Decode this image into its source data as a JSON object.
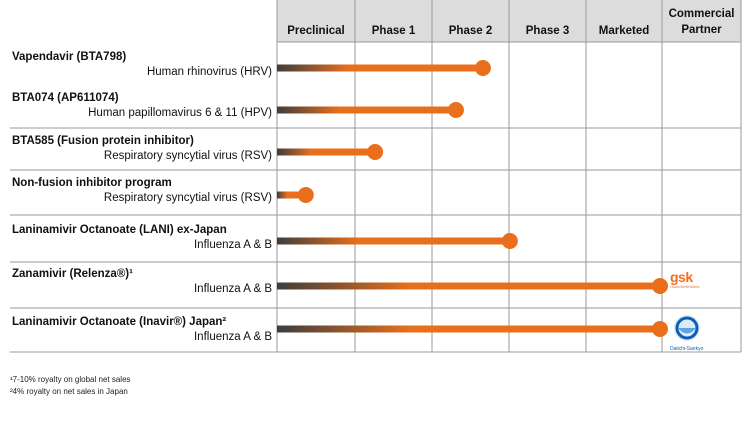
{
  "chart_data": {
    "type": "bar",
    "columns": [
      "Preclinical",
      "Phase 1",
      "Phase 2",
      "Phase 3",
      "Marketed"
    ],
    "partner_header": [
      "Commercial",
      "Partner"
    ],
    "rows": [
      {
        "name": "Vapendavir (BTA798)",
        "indication": "Human rhinovirus (HRV)",
        "progress": 2.7,
        "partner": ""
      },
      {
        "name": "BTA074 (AP611074)",
        "indication": "Human papillomavirus 6 & 11 (HPV)",
        "progress": 2.35,
        "partner": ""
      },
      {
        "name": "BTA585 (Fusion protein inhibitor)",
        "indication": "Respiratory syncytial virus (RSV)",
        "progress": 1.3,
        "partner": ""
      },
      {
        "name": "Non-fusion inhibitor program",
        "indication": "Respiratory syncytial virus (RSV)",
        "progress": 0.4,
        "partner": ""
      },
      {
        "name": "Laninamivir Octanoate (LANI) ex-Japan",
        "indication": "Influenza A & B",
        "progress": 3.05,
        "partner": ""
      },
      {
        "name": "Zanamivir (Relenza®)¹",
        "indication": "Influenza A & B",
        "progress": 5.0,
        "partner": "gsk"
      },
      {
        "name": "Laninamivir Octanoate (Inavir®) Japan²",
        "indication": "Influenza A & B",
        "progress": 5.0,
        "partner": "daiichi"
      }
    ],
    "bar_color": "#e96f1c",
    "bar_start_color": "#3d3d3d"
  },
  "partners": {
    "gsk": {
      "text": "gsk",
      "subtext": "GlaxoSmithKline",
      "color": "#f36e21"
    },
    "daiichi": {
      "text": "Daiichi-Sankyo",
      "color": "#0a5fb4"
    }
  },
  "footnotes": [
    "¹7-10% royalty on global net sales",
    "²4% royalty on net sales in Japan"
  ]
}
